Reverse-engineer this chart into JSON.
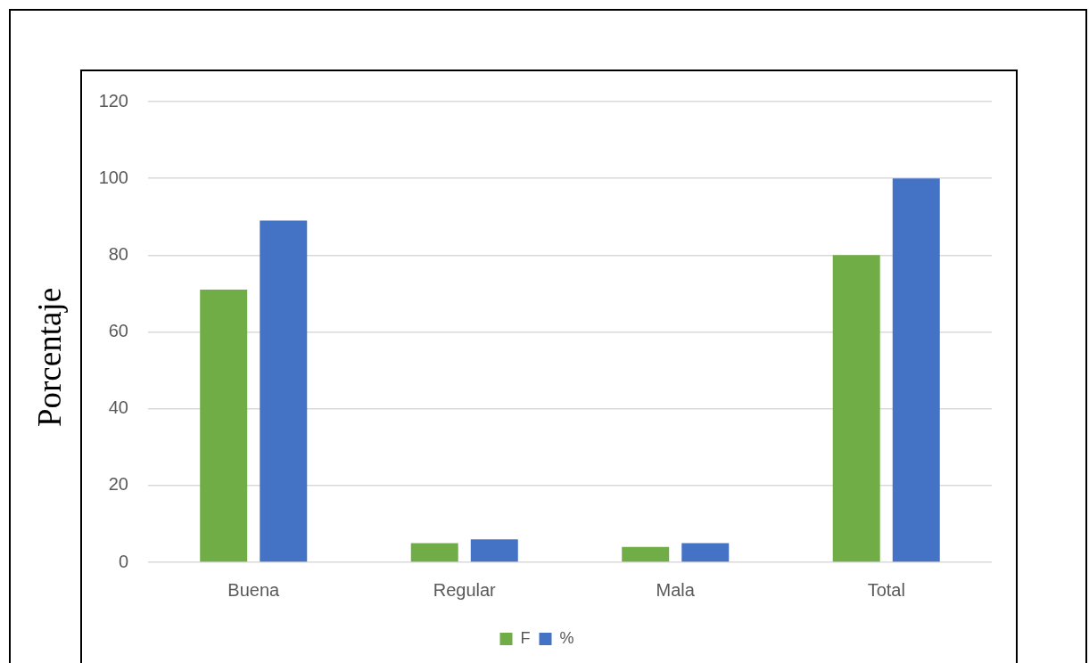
{
  "chart_data": {
    "type": "bar",
    "ylabel": "Porcentaje",
    "categories": [
      "Buena",
      "Regular",
      "Mala",
      "Total"
    ],
    "series": [
      {
        "name": "F",
        "color": "#70ad47",
        "values": [
          71,
          5,
          4,
          80
        ]
      },
      {
        "name": "%",
        "color": "#4472c4",
        "values": [
          89,
          6,
          5,
          100
        ]
      }
    ],
    "ylim": [
      0,
      120
    ],
    "yticks": [
      0,
      20,
      40,
      60,
      80,
      100,
      120
    ],
    "grid": "y",
    "legend": "bottom"
  }
}
